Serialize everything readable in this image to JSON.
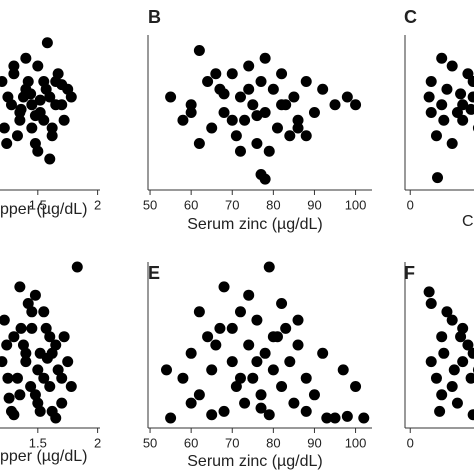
{
  "chart_data": [
    {
      "type": "scatter",
      "xlabel": "pper (µg/dL)",
      "xlim": [
        1.0,
        2.02
      ],
      "ylim": [
        0,
        100
      ],
      "xticks": [
        1.5,
        2
      ],
      "color": "#000000",
      "x": [
        1.2,
        1.25,
        1.3,
        1.35,
        1.4,
        1.45,
        1.5,
        1.55,
        1.6,
        1.65,
        1.7,
        1.75,
        1.22,
        1.28,
        1.33,
        1.38,
        1.42,
        1.48,
        1.52,
        1.57,
        1.62,
        1.67,
        1.72,
        1.78,
        1.3,
        1.4,
        1.5,
        1.6,
        1.35,
        1.45,
        1.55,
        1.65,
        1.58,
        1.24,
        1.44,
        1.62,
        1.36,
        1.52,
        1.7,
        1.48
      ],
      "y": [
        70,
        60,
        75,
        50,
        65,
        55,
        80,
        45,
        60,
        70,
        55,
        65,
        40,
        55,
        35,
        60,
        70,
        30,
        50,
        65,
        40,
        75,
        45,
        60,
        80,
        85,
        25,
        20,
        45,
        40,
        70,
        55,
        95,
        30,
        62,
        35,
        52,
        58,
        68,
        48
      ]
    },
    {
      "type": "scatter",
      "panel": "B",
      "xlabel": "Serum zinc (µg/dL)",
      "xlim": [
        49.5,
        104
      ],
      "ylim": [
        0,
        100
      ],
      "xticks": [
        50,
        60,
        70,
        80,
        90,
        100
      ],
      "color": "#000000",
      "x": [
        55,
        58,
        60,
        62,
        64,
        65,
        67,
        68,
        70,
        71,
        72,
        73,
        74,
        75,
        76,
        77,
        78,
        79,
        80,
        81,
        82,
        83,
        84,
        85,
        86,
        88,
        90,
        92,
        95,
        98,
        100,
        62,
        66,
        70,
        74,
        78,
        82,
        86,
        77,
        78,
        60,
        68,
        88,
        76,
        72
      ],
      "y": [
        60,
        45,
        55,
        90,
        70,
        40,
        65,
        50,
        75,
        35,
        60,
        45,
        80,
        55,
        30,
        70,
        50,
        25,
        65,
        40,
        75,
        55,
        35,
        60,
        45,
        70,
        50,
        65,
        55,
        60,
        55,
        30,
        75,
        45,
        65,
        85,
        55,
        40,
        10,
        7,
        50,
        62,
        35,
        48,
        25
      ]
    },
    {
      "type": "scatter",
      "panel": "C",
      "xlabel": "C",
      "xlim": [
        -0.5,
        20
      ],
      "ylim": [
        0,
        100
      ],
      "xticks": [
        0
      ],
      "color": "#000000",
      "x": [
        2,
        3,
        4,
        5,
        6,
        2.5,
        3.5,
        4.5,
        5.5,
        6.5,
        3,
        4,
        5,
        2,
        6,
        2.6,
        3.2,
        4.8,
        5.8,
        1.8
      ],
      "y": [
        70,
        55,
        80,
        45,
        60,
        35,
        65,
        50,
        75,
        40,
        85,
        30,
        55,
        50,
        70,
        8,
        45,
        62,
        52,
        60
      ]
    },
    {
      "type": "scatter",
      "xlabel": "pper (µg/dL)",
      "xlim": [
        1.0,
        2.02
      ],
      "ylim": [
        0,
        100
      ],
      "xticks": [
        1.5,
        2
      ],
      "color": "#000000",
      "x": [
        1.2,
        1.25,
        1.3,
        1.35,
        1.4,
        1.45,
        1.5,
        1.55,
        1.6,
        1.65,
        1.7,
        1.75,
        1.22,
        1.28,
        1.33,
        1.38,
        1.42,
        1.48,
        1.52,
        1.57,
        1.62,
        1.67,
        1.72,
        1.78,
        1.3,
        1.4,
        1.5,
        1.6,
        1.35,
        1.45,
        1.55,
        1.65,
        1.83,
        1.24,
        1.44,
        1.62,
        1.36,
        1.52,
        1.7,
        1.48,
        1.58,
        1.26
      ],
      "y": [
        40,
        30,
        55,
        20,
        45,
        60,
        35,
        70,
        25,
        50,
        15,
        40,
        65,
        10,
        30,
        50,
        75,
        20,
        45,
        60,
        10,
        35,
        55,
        25,
        8,
        40,
        15,
        55,
        85,
        70,
        30,
        6,
        97,
        50,
        25,
        45,
        60,
        10,
        30,
        80,
        42,
        18
      ]
    },
    {
      "type": "scatter",
      "panel": "E",
      "xlabel": "Serum zinc (µg/dL)",
      "xlim": [
        49.5,
        104
      ],
      "ylim": [
        0,
        100
      ],
      "xticks": [
        50,
        60,
        70,
        80,
        90,
        100
      ],
      "color": "#000000",
      "x": [
        55,
        58,
        60,
        62,
        64,
        65,
        67,
        68,
        70,
        71,
        72,
        73,
        74,
        75,
        76,
        77,
        78,
        79,
        80,
        81,
        82,
        83,
        84,
        85,
        86,
        88,
        90,
        92,
        95,
        98,
        100,
        62,
        66,
        70,
        74,
        79,
        82,
        86,
        77,
        54,
        60,
        68,
        88,
        76,
        72,
        93,
        97,
        102,
        65,
        80
      ],
      "y": [
        6,
        30,
        45,
        20,
        55,
        35,
        60,
        10,
        40,
        25,
        70,
        15,
        50,
        30,
        65,
        20,
        45,
        8,
        35,
        55,
        25,
        60,
        40,
        15,
        50,
        30,
        20,
        45,
        6,
        7,
        25,
        70,
        50,
        60,
        80,
        97,
        75,
        65,
        12,
        35,
        15,
        85,
        10,
        40,
        30,
        6,
        35,
        6,
        8,
        55
      ]
    },
    {
      "type": "scatter",
      "panel": "F",
      "xlabel": null,
      "xlim": [
        -0.5,
        20
      ],
      "ylim": [
        0,
        100
      ],
      "xticks": [
        0
      ],
      "color": "#000000",
      "x": [
        2,
        3,
        4,
        5,
        6,
        2.5,
        3.5,
        4.5,
        5.5,
        6.5,
        3,
        4,
        5,
        2,
        6,
        1.8,
        3.2,
        4.8,
        5.8,
        2.8,
        4.2
      ],
      "y": [
        40,
        55,
        25,
        60,
        45,
        30,
        70,
        15,
        50,
        35,
        20,
        65,
        40,
        75,
        8,
        82,
        45,
        55,
        30,
        10,
        35
      ]
    }
  ]
}
